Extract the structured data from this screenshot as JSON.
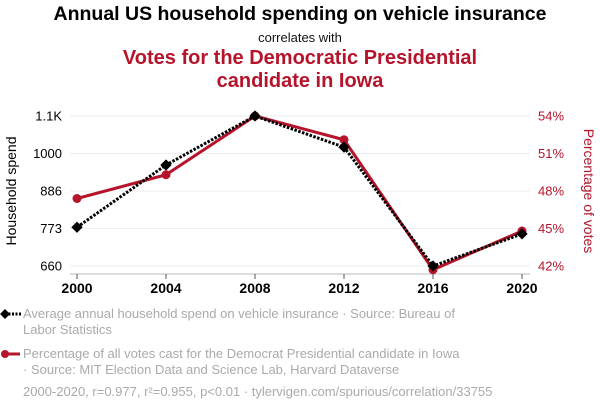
{
  "header": {
    "title": "Annual US household spending on vehicle insurance",
    "subtitle": "correlates with",
    "title2_line1": "Votes for the Democratic Presidential",
    "title2_line2": "candidate in Iowa"
  },
  "colors": {
    "series1": "#000000",
    "series2": "#b5142b",
    "grid": "#eeeeee",
    "legend_text": "#aaaaaa"
  },
  "chart_data": {
    "type": "line",
    "title": "Annual US household spending on vehicle insurance correlates with Votes for the Democratic Presidential candidate in Iowa",
    "x": [
      2000,
      2004,
      2008,
      2012,
      2016,
      2020
    ],
    "xticks": [
      "2000",
      "2004",
      "2008",
      "2012",
      "2016",
      "2020"
    ],
    "xlim": [
      2000,
      2020
    ],
    "ylabel_left": "Household spend",
    "ylabel_right": "Percentage of votes",
    "ylim_left": [
      660,
      1113
    ],
    "yticks_left": [
      "660",
      "773",
      "886",
      "1000",
      "1.1K"
    ],
    "ylim_right": [
      42,
      54
    ],
    "yticks_right": [
      "42%",
      "45%",
      "48%",
      "51%",
      "54%"
    ],
    "grid": true,
    "series": [
      {
        "name": "Average annual household spend on vehicle insurance · Source: Bureau of Labor Statistics",
        "axis": "left",
        "style": "dotted",
        "marker": "diamond",
        "values": [
          777,
          965,
          1113,
          1019,
          660,
          757
        ]
      },
      {
        "name": "Percentage of all votes cast for the Democrat Presidential candidate in Iowa · Source: MIT Election Data and Science Lab, Harvard Dataverse",
        "axis": "right",
        "style": "solid",
        "marker": "circle",
        "values": [
          47.4,
          49.3,
          54.0,
          52.1,
          41.7,
          44.8
        ]
      }
    ],
    "legend": "bottom"
  },
  "legend": {
    "item1_line1": "Average annual household spend on vehicle insurance · Source: Bureau of",
    "item1_line2": "Labor Statistics",
    "item2_line1": "Percentage of all votes cast for the Democrat Presidential candidate in Iowa",
    "item2_line2": "· Source: MIT Election Data and Science Lab, Harvard Dataverse"
  },
  "footer": "2000-2020, r=0.977, r²=0.955, p<0.01 · tylervigen.com/spurious/correlation/33755"
}
